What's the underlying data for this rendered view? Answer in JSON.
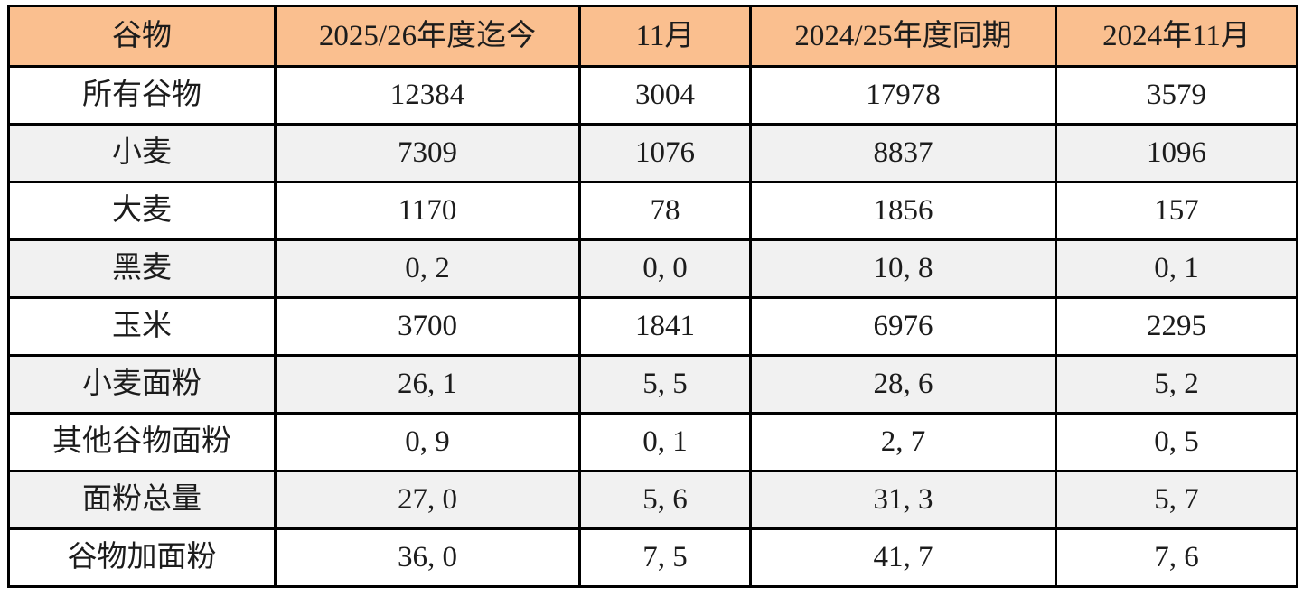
{
  "table": {
    "columns": [
      {
        "label": "谷物"
      },
      {
        "label": "2025/26年度迄今"
      },
      {
        "label": "11月"
      },
      {
        "label": "2024/25年度同期"
      },
      {
        "label": "2024年11月"
      }
    ],
    "rows": [
      {
        "label": "所有谷物",
        "values": [
          "12384",
          "3004",
          "17978",
          "3579"
        ]
      },
      {
        "label": "小麦",
        "values": [
          "7309",
          "1076",
          "8837",
          "1096"
        ]
      },
      {
        "label": "大麦",
        "values": [
          "1170",
          "78",
          "1856",
          "157"
        ]
      },
      {
        "label": "黑麦",
        "values": [
          "0, 2",
          "0, 0",
          "10, 8",
          "0, 1"
        ]
      },
      {
        "label": "玉米",
        "values": [
          "3700",
          "1841",
          "6976",
          "2295"
        ]
      },
      {
        "label": "小麦面粉",
        "values": [
          "26, 1",
          "5, 5",
          "28, 6",
          "5, 2"
        ]
      },
      {
        "label": "其他谷物面粉",
        "values": [
          "0, 9",
          "0, 1",
          "2, 7",
          "0, 5"
        ]
      },
      {
        "label": "面粉总量",
        "values": [
          "27, 0",
          "5, 6",
          "31, 3",
          "5, 7"
        ]
      },
      {
        "label": "谷物加面粉",
        "values": [
          "36, 0",
          "7, 5",
          "41, 7",
          "7, 6"
        ]
      }
    ],
    "colors": {
      "header_background": "#FABF8F",
      "alternate_row_background": "#F1F1F1",
      "row_background": "#FFFFFF",
      "border": "#000000",
      "text": "#1C1C1C"
    }
  }
}
